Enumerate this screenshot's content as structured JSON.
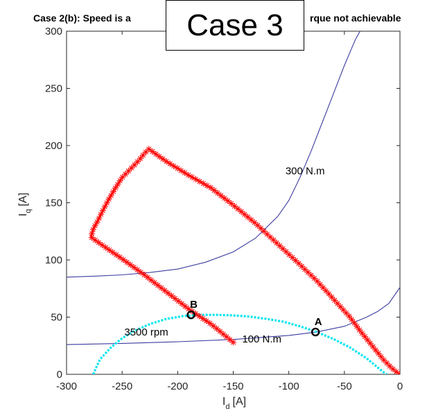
{
  "chart_data": {
    "type": "line",
    "title": "Case 2(b): Speed is achievable but torque not achievable",
    "title_left_visible": "Case 2(b): Speed is a",
    "title_right_visible": "rque not achievable",
    "overlay_label": "Case 3",
    "xlabel": "I",
    "xlabel_sub": "d",
    "xlabel_unit": "[A]",
    "ylabel": "I",
    "ylabel_sub": "q",
    "ylabel_unit": "[A]",
    "xlim": [
      -300,
      0
    ],
    "ylim": [
      0,
      300
    ],
    "xticks": [
      "-300",
      "-250",
      "-200",
      "-150",
      "-100",
      "-50",
      "0"
    ],
    "yticks": [
      "0",
      "50",
      "100",
      "150",
      "200",
      "250",
      "300"
    ],
    "grid": false,
    "series": [
      {
        "kind": "torque_curve",
        "color": "#3b3ba0",
        "x": [
          -300,
          -275,
          -250,
          -225,
          -200,
          -175,
          -150,
          -130,
          -110,
          -100,
          -90,
          -80,
          -70,
          -60,
          -50,
          -40,
          -33
        ],
        "y": [
          85,
          85.8,
          87,
          89,
          92,
          98,
          107,
          119,
          138,
          152,
          172,
          195,
          220,
          245,
          270,
          293,
          305
        ]
      },
      {
        "kind": "torque_curve",
        "color": "#3b3ba0",
        "x": [
          -300,
          -250,
          -200,
          -150,
          -100,
          -75,
          -50,
          -30,
          -20,
          -10,
          0
        ],
        "y": [
          26,
          27,
          28.5,
          30.5,
          34,
          37,
          42,
          50,
          55,
          62,
          76
        ]
      },
      {
        "kind": "voltage_limit",
        "color": "#00e5f0",
        "x": [
          -276,
          -270,
          -260,
          -250,
          -240,
          -225,
          -210,
          -195,
          -180,
          -165,
          -150,
          -135,
          -120,
          -105,
          -90,
          -75,
          -60,
          -45,
          -30,
          -20,
          -15,
          -12
        ],
        "y": [
          0,
          13,
          23.5,
          31.5,
          37.5,
          44,
          48.5,
          51,
          52,
          52,
          51.5,
          50.5,
          48.5,
          46,
          42,
          37,
          31,
          23.5,
          14,
          6,
          2,
          0
        ]
      },
      {
        "kind": "trajectory",
        "color": "#ff0000",
        "x": [
          -150,
          -170,
          -190,
          -210,
          -230,
          -250,
          -265,
          -278,
          -276,
          -272,
          -268,
          -262,
          -256,
          -250,
          -245,
          -240,
          -235,
          -230,
          -226,
          -210,
          -190,
          -170,
          -150,
          -130,
          -110,
          -90,
          -75,
          -60,
          -45,
          -35,
          -25,
          -15,
          -8,
          -3,
          0
        ],
        "y": [
          28,
          44,
          57,
          72,
          87,
          101,
          111,
          120,
          127,
          134,
          142,
          153,
          163,
          172,
          177,
          182,
          187,
          193,
          197,
          186,
          174,
          163,
          148,
          132,
          114,
          96,
          82,
          66,
          50,
          37,
          25,
          13,
          6,
          2,
          0
        ]
      }
    ],
    "points": [
      {
        "label": "A",
        "x": -76,
        "y": 37
      },
      {
        "label": "B",
        "x": -188,
        "y": 52
      }
    ],
    "annotations": [
      {
        "text": "300 N.m",
        "x": -103,
        "y": 178
      },
      {
        "text": "100 N.m",
        "x": -142,
        "y": 31
      },
      {
        "text": "3500 rpm",
        "x": -248,
        "y": 37
      }
    ]
  }
}
